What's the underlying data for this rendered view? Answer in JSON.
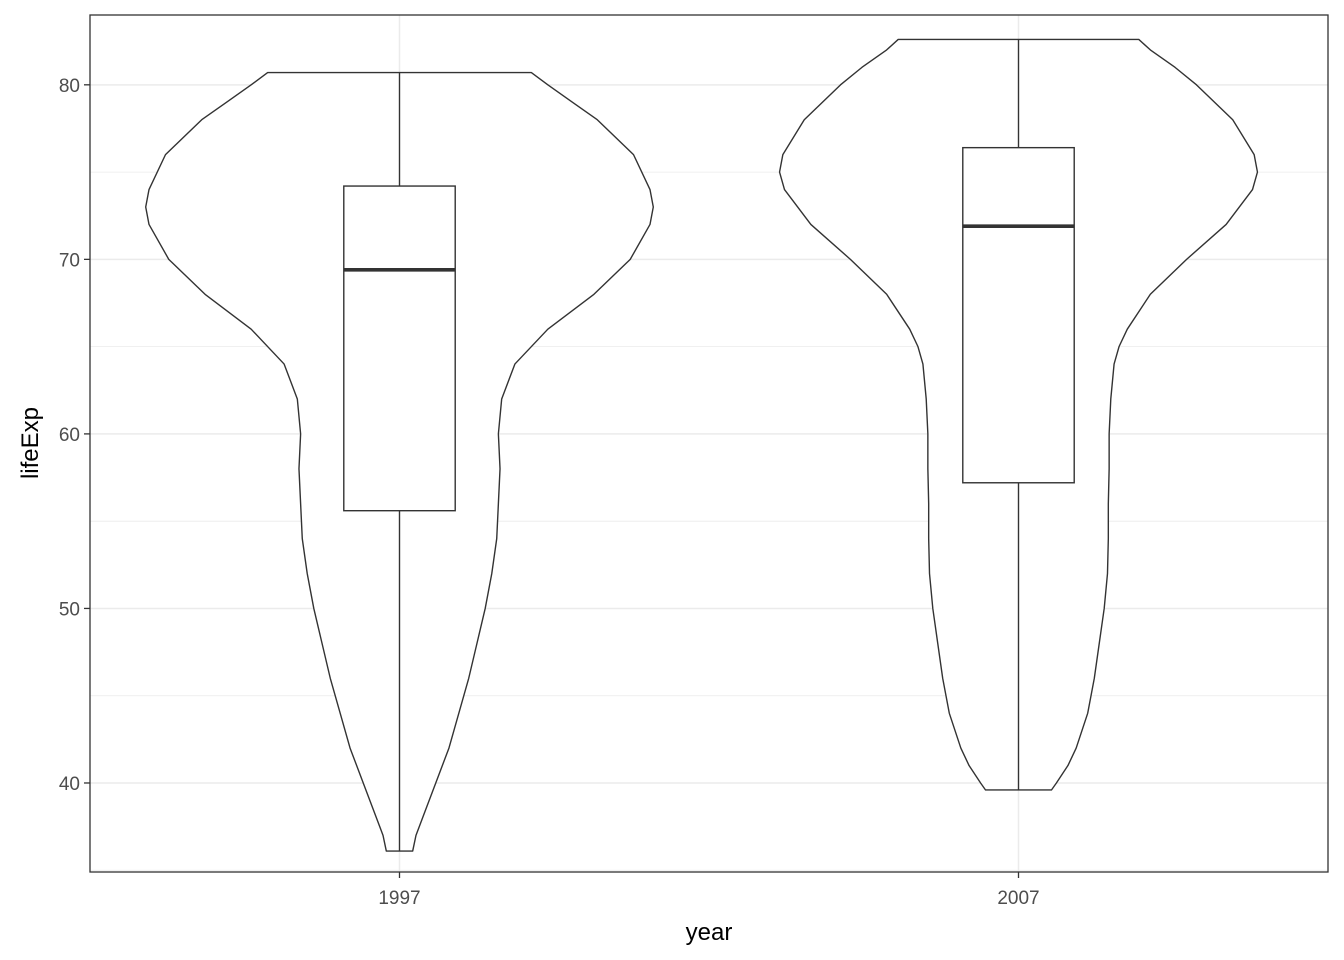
{
  "chart_data": {
    "type": "violin",
    "xlabel": "year",
    "ylabel": "lifeExp",
    "categories": [
      "1997",
      "2007"
    ],
    "ylim": [
      34.9,
      84.0
    ],
    "y_ticks": [
      40,
      50,
      60,
      70,
      80
    ],
    "grid": true,
    "legend": "none",
    "series": [
      {
        "category": "1997",
        "min": 36.1,
        "q1": 55.6,
        "median": 69.4,
        "q3": 74.2,
        "max": 80.7,
        "violin_density": [
          [
            36.1,
            0.08
          ],
          [
            37,
            0.1
          ],
          [
            38,
            0.14
          ],
          [
            40,
            0.22
          ],
          [
            42,
            0.3
          ],
          [
            44,
            0.36
          ],
          [
            46,
            0.42
          ],
          [
            48,
            0.47
          ],
          [
            50,
            0.52
          ],
          [
            52,
            0.56
          ],
          [
            54,
            0.59
          ],
          [
            56,
            0.6
          ],
          [
            58,
            0.61
          ],
          [
            60,
            0.6
          ],
          [
            62,
            0.62
          ],
          [
            64,
            0.7
          ],
          [
            66,
            0.9
          ],
          [
            68,
            1.18
          ],
          [
            70,
            1.4
          ],
          [
            72,
            1.52
          ],
          [
            73,
            1.54
          ],
          [
            74,
            1.52
          ],
          [
            76,
            1.42
          ],
          [
            78,
            1.2
          ],
          [
            79,
            1.05
          ],
          [
            80,
            0.9
          ],
          [
            80.7,
            0.8
          ]
        ]
      },
      {
        "category": "2007",
        "min": 39.6,
        "q1": 57.2,
        "median": 71.9,
        "q3": 76.4,
        "max": 82.6,
        "violin_density": [
          [
            39.6,
            0.2
          ],
          [
            40,
            0.23
          ],
          [
            41,
            0.3
          ],
          [
            42,
            0.35
          ],
          [
            44,
            0.42
          ],
          [
            46,
            0.46
          ],
          [
            48,
            0.49
          ],
          [
            50,
            0.52
          ],
          [
            52,
            0.54
          ],
          [
            54,
            0.545
          ],
          [
            56,
            0.545
          ],
          [
            58,
            0.55
          ],
          [
            60,
            0.55
          ],
          [
            62,
            0.56
          ],
          [
            64,
            0.58
          ],
          [
            65,
            0.61
          ],
          [
            66,
            0.66
          ],
          [
            68,
            0.8
          ],
          [
            70,
            1.02
          ],
          [
            72,
            1.26
          ],
          [
            74,
            1.42
          ],
          [
            75,
            1.45
          ],
          [
            76,
            1.43
          ],
          [
            78,
            1.3
          ],
          [
            80,
            1.08
          ],
          [
            81,
            0.95
          ],
          [
            82,
            0.8
          ],
          [
            82.6,
            0.73
          ]
        ]
      }
    ]
  }
}
